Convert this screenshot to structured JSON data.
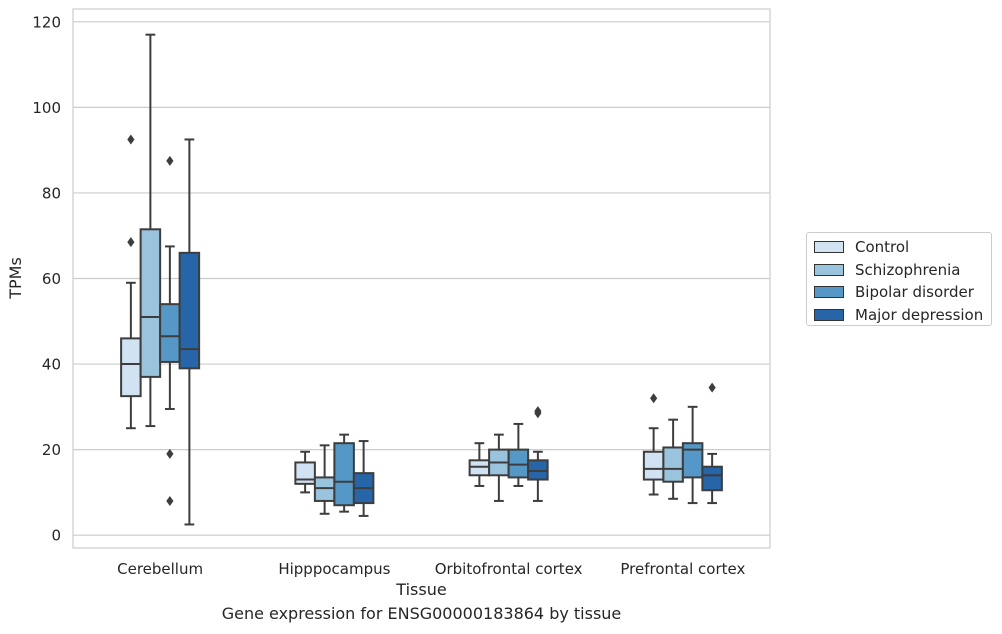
{
  "caption": "Gene expression for ENSG00000183864 by tissue",
  "chart_data": {
    "type": "box",
    "xlabel": "Tissue",
    "ylabel": "TPMs",
    "ylim": [
      -3,
      123
    ],
    "yticks": [
      0,
      20,
      40,
      60,
      80,
      100,
      120
    ],
    "grid": true,
    "legend_position": "right",
    "categories": [
      "Cerebellum",
      "Hipppocampus",
      "Orbitofrontal cortex",
      "Prefrontal cortex"
    ],
    "series": [
      {
        "name": "Control",
        "color": "#d1e2f2",
        "boxes": [
          {
            "whisker_low": 25,
            "q1": 32.5,
            "median": 40,
            "q3": 46,
            "whisker_high": 59,
            "outliers": [
              92.5,
              68.5
            ]
          },
          {
            "whisker_low": 10,
            "q1": 12,
            "median": 13,
            "q3": 17,
            "whisker_high": 19.5,
            "outliers": []
          },
          {
            "whisker_low": 11.5,
            "q1": 14,
            "median": 16,
            "q3": 17.5,
            "whisker_high": 21.5,
            "outliers": []
          },
          {
            "whisker_low": 9.5,
            "q1": 13,
            "median": 15.5,
            "q3": 19.5,
            "whisker_high": 25,
            "outliers": [
              32
            ]
          }
        ]
      },
      {
        "name": "Schizophrenia",
        "color": "#9ac3de",
        "boxes": [
          {
            "whisker_low": 25.5,
            "q1": 37,
            "median": 51,
            "q3": 71.5,
            "whisker_high": 117,
            "outliers": []
          },
          {
            "whisker_low": 5,
            "q1": 8,
            "median": 11,
            "q3": 13.5,
            "whisker_high": 21,
            "outliers": []
          },
          {
            "whisker_low": 8,
            "q1": 14,
            "median": 17,
            "q3": 20,
            "whisker_high": 23.5,
            "outliers": []
          },
          {
            "whisker_low": 8.5,
            "q1": 12.5,
            "median": 15.5,
            "q3": 20.5,
            "whisker_high": 27,
            "outliers": []
          }
        ]
      },
      {
        "name": "Bipolar disorder",
        "color": "#5597c6",
        "boxes": [
          {
            "whisker_low": 29.5,
            "q1": 40.5,
            "median": 46.5,
            "q3": 54,
            "whisker_high": 67.5,
            "outliers": [
              87.5,
              19,
              8
            ]
          },
          {
            "whisker_low": 5.5,
            "q1": 7,
            "median": 12.5,
            "q3": 21.5,
            "whisker_high": 23.5,
            "outliers": []
          },
          {
            "whisker_low": 11.5,
            "q1": 13.5,
            "median": 16.5,
            "q3": 20,
            "whisker_high": 26,
            "outliers": []
          },
          {
            "whisker_low": 7.5,
            "q1": 13.5,
            "median": 20,
            "q3": 21.5,
            "whisker_high": 30,
            "outliers": []
          }
        ]
      },
      {
        "name": "Major depression",
        "color": "#2565a8",
        "boxes": [
          {
            "whisker_low": 2.5,
            "q1": 39,
            "median": 43.5,
            "q3": 66,
            "whisker_high": 92.5,
            "outliers": []
          },
          {
            "whisker_low": 4.5,
            "q1": 7.5,
            "median": 11,
            "q3": 14.5,
            "whisker_high": 22,
            "outliers": []
          },
          {
            "whisker_low": 8,
            "q1": 13,
            "median": 15,
            "q3": 17.5,
            "whisker_high": 19.5,
            "outliers": [
              29,
              28.5
            ]
          },
          {
            "whisker_low": 7.5,
            "q1": 10.5,
            "median": 14,
            "q3": 16,
            "whisker_high": 19,
            "outliers": [
              34.5
            ]
          }
        ]
      }
    ]
  }
}
